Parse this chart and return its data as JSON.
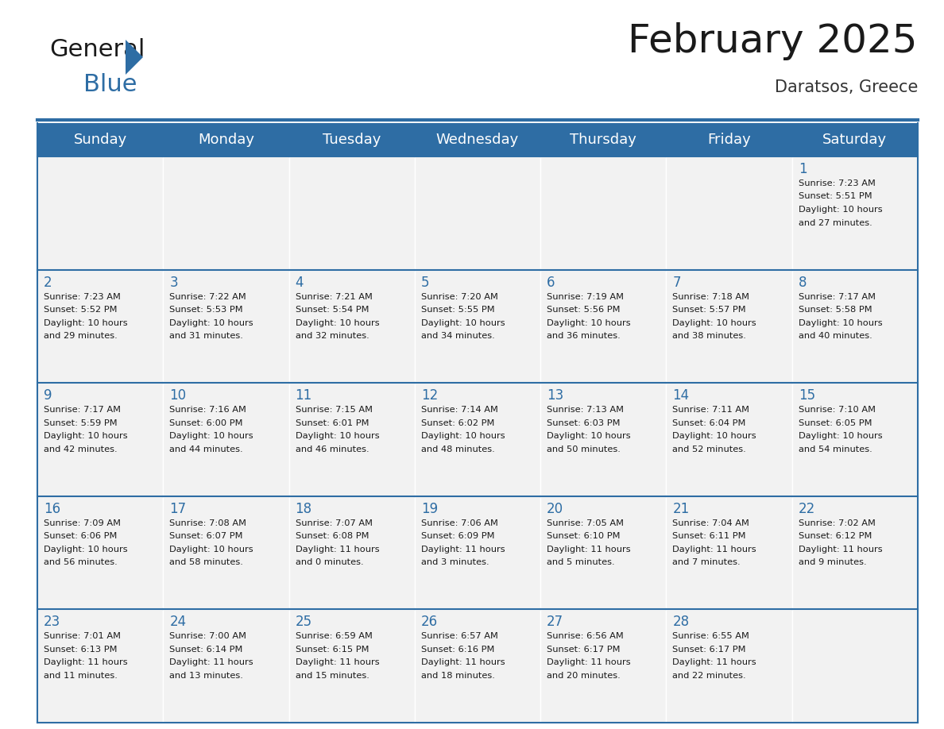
{
  "title": "February 2025",
  "subtitle": "Daratsos, Greece",
  "header_color": "#2E6DA4",
  "header_text_color": "#FFFFFF",
  "background_color": "#FFFFFF",
  "cell_bg_color": "#F2F2F2",
  "border_color": "#2E6DA4",
  "days_of_week": [
    "Sunday",
    "Monday",
    "Tuesday",
    "Wednesday",
    "Thursday",
    "Friday",
    "Saturday"
  ],
  "title_fontsize": 36,
  "subtitle_fontsize": 15,
  "day_header_fontsize": 13,
  "cell_day_fontsize": 12,
  "cell_text_fontsize": 8.2,
  "calendar": [
    [
      null,
      null,
      null,
      null,
      null,
      null,
      {
        "day": "1",
        "sunrise": "7:23 AM",
        "sunset": "5:51 PM",
        "daylight_h": "10 hours",
        "daylight_m": "and 27 minutes."
      }
    ],
    [
      {
        "day": "2",
        "sunrise": "7:23 AM",
        "sunset": "5:52 PM",
        "daylight_h": "10 hours",
        "daylight_m": "and 29 minutes."
      },
      {
        "day": "3",
        "sunrise": "7:22 AM",
        "sunset": "5:53 PM",
        "daylight_h": "10 hours",
        "daylight_m": "and 31 minutes."
      },
      {
        "day": "4",
        "sunrise": "7:21 AM",
        "sunset": "5:54 PM",
        "daylight_h": "10 hours",
        "daylight_m": "and 32 minutes."
      },
      {
        "day": "5",
        "sunrise": "7:20 AM",
        "sunset": "5:55 PM",
        "daylight_h": "10 hours",
        "daylight_m": "and 34 minutes."
      },
      {
        "day": "6",
        "sunrise": "7:19 AM",
        "sunset": "5:56 PM",
        "daylight_h": "10 hours",
        "daylight_m": "and 36 minutes."
      },
      {
        "day": "7",
        "sunrise": "7:18 AM",
        "sunset": "5:57 PM",
        "daylight_h": "10 hours",
        "daylight_m": "and 38 minutes."
      },
      {
        "day": "8",
        "sunrise": "7:17 AM",
        "sunset": "5:58 PM",
        "daylight_h": "10 hours",
        "daylight_m": "and 40 minutes."
      }
    ],
    [
      {
        "day": "9",
        "sunrise": "7:17 AM",
        "sunset": "5:59 PM",
        "daylight_h": "10 hours",
        "daylight_m": "and 42 minutes."
      },
      {
        "day": "10",
        "sunrise": "7:16 AM",
        "sunset": "6:00 PM",
        "daylight_h": "10 hours",
        "daylight_m": "and 44 minutes."
      },
      {
        "day": "11",
        "sunrise": "7:15 AM",
        "sunset": "6:01 PM",
        "daylight_h": "10 hours",
        "daylight_m": "and 46 minutes."
      },
      {
        "day": "12",
        "sunrise": "7:14 AM",
        "sunset": "6:02 PM",
        "daylight_h": "10 hours",
        "daylight_m": "and 48 minutes."
      },
      {
        "day": "13",
        "sunrise": "7:13 AM",
        "sunset": "6:03 PM",
        "daylight_h": "10 hours",
        "daylight_m": "and 50 minutes."
      },
      {
        "day": "14",
        "sunrise": "7:11 AM",
        "sunset": "6:04 PM",
        "daylight_h": "10 hours",
        "daylight_m": "and 52 minutes."
      },
      {
        "day": "15",
        "sunrise": "7:10 AM",
        "sunset": "6:05 PM",
        "daylight_h": "10 hours",
        "daylight_m": "and 54 minutes."
      }
    ],
    [
      {
        "day": "16",
        "sunrise": "7:09 AM",
        "sunset": "6:06 PM",
        "daylight_h": "10 hours",
        "daylight_m": "and 56 minutes."
      },
      {
        "day": "17",
        "sunrise": "7:08 AM",
        "sunset": "6:07 PM",
        "daylight_h": "10 hours",
        "daylight_m": "and 58 minutes."
      },
      {
        "day": "18",
        "sunrise": "7:07 AM",
        "sunset": "6:08 PM",
        "daylight_h": "11 hours",
        "daylight_m": "and 0 minutes."
      },
      {
        "day": "19",
        "sunrise": "7:06 AM",
        "sunset": "6:09 PM",
        "daylight_h": "11 hours",
        "daylight_m": "and 3 minutes."
      },
      {
        "day": "20",
        "sunrise": "7:05 AM",
        "sunset": "6:10 PM",
        "daylight_h": "11 hours",
        "daylight_m": "and 5 minutes."
      },
      {
        "day": "21",
        "sunrise": "7:04 AM",
        "sunset": "6:11 PM",
        "daylight_h": "11 hours",
        "daylight_m": "and 7 minutes."
      },
      {
        "day": "22",
        "sunrise": "7:02 AM",
        "sunset": "6:12 PM",
        "daylight_h": "11 hours",
        "daylight_m": "and 9 minutes."
      }
    ],
    [
      {
        "day": "23",
        "sunrise": "7:01 AM",
        "sunset": "6:13 PM",
        "daylight_h": "11 hours",
        "daylight_m": "and 11 minutes."
      },
      {
        "day": "24",
        "sunrise": "7:00 AM",
        "sunset": "6:14 PM",
        "daylight_h": "11 hours",
        "daylight_m": "and 13 minutes."
      },
      {
        "day": "25",
        "sunrise": "6:59 AM",
        "sunset": "6:15 PM",
        "daylight_h": "11 hours",
        "daylight_m": "and 15 minutes."
      },
      {
        "day": "26",
        "sunrise": "6:57 AM",
        "sunset": "6:16 PM",
        "daylight_h": "11 hours",
        "daylight_m": "and 18 minutes."
      },
      {
        "day": "27",
        "sunrise": "6:56 AM",
        "sunset": "6:17 PM",
        "daylight_h": "11 hours",
        "daylight_m": "and 20 minutes."
      },
      {
        "day": "28",
        "sunrise": "6:55 AM",
        "sunset": "6:17 PM",
        "daylight_h": "11 hours",
        "daylight_m": "and 22 minutes."
      },
      null
    ]
  ]
}
